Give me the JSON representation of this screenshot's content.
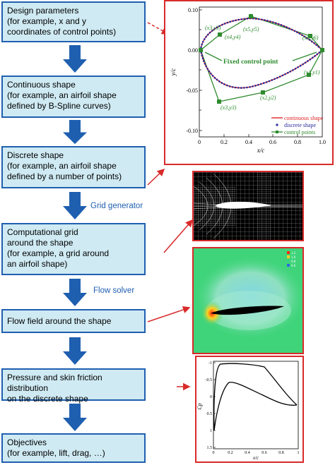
{
  "steps": [
    {
      "line1": "Design parameters",
      "line2": "(for example, x and y",
      "line3": "coordinates of control points)",
      "line4": ""
    },
    {
      "line1": "Continuous shape",
      "line2": "(for example, an airfoil shape",
      "line3": "defined by B-Spline curves)",
      "line4": ""
    },
    {
      "line1": "Discrete shape",
      "line2": "(for example, an airfoil shape",
      "line3": "defined by a number of points)",
      "line4": ""
    },
    {
      "line1": "Computational grid",
      "line2": "around the shape",
      "line3": "(for example, a grid around",
      "line4": "an airfoil shape)"
    },
    {
      "line1": "Flow field around the shape",
      "line2": "",
      "line3": "",
      "line4": ""
    },
    {
      "line1": "Pressure and skin friction distribution",
      "line2": "on the discrete shape",
      "line3": "",
      "line4": ""
    },
    {
      "line1": "Objectives",
      "line2": "(for example, lift, drag, …)",
      "line3": "",
      "line4": ""
    }
  ],
  "arrow_labels": {
    "grid": "Grid generator",
    "flow": "Flow solver"
  },
  "airfoil_plot": {
    "ylabel": "y/c",
    "xlabel": "x/c",
    "yticks": [
      "0.10",
      "0.05",
      "0.00",
      "-0.05",
      "-0.10"
    ],
    "xticks": [
      "0",
      "0.2",
      "0.4",
      "0.6",
      "0.8",
      "1.0"
    ],
    "annotation": "Fixed control point",
    "point_labels": [
      "(x3,y3)",
      "(x4,y4)",
      "(x5,y5)",
      "(x6,y6)",
      "(x1,y1)",
      "(x2,y2)",
      "(x3,y3)"
    ],
    "legend": [
      "continuous shape",
      "discrete shape",
      "control points"
    ],
    "colors": {
      "continuous": "#e02424",
      "discrete": "#2a2a9a",
      "control": "#2e8b2e"
    }
  },
  "cp_plot": {
    "ylabel": "Cp",
    "xlabel": "x/c",
    "yticks": [
      "-1",
      "-0.5",
      "0",
      "0.5",
      "1",
      "1.5"
    ],
    "xticks": [
      "0",
      "0.2",
      "0.4",
      "0.6",
      "0.8",
      "1"
    ]
  },
  "flow_legend": [
    "1.2",
    "1.0",
    "0.8",
    "0.6"
  ]
}
